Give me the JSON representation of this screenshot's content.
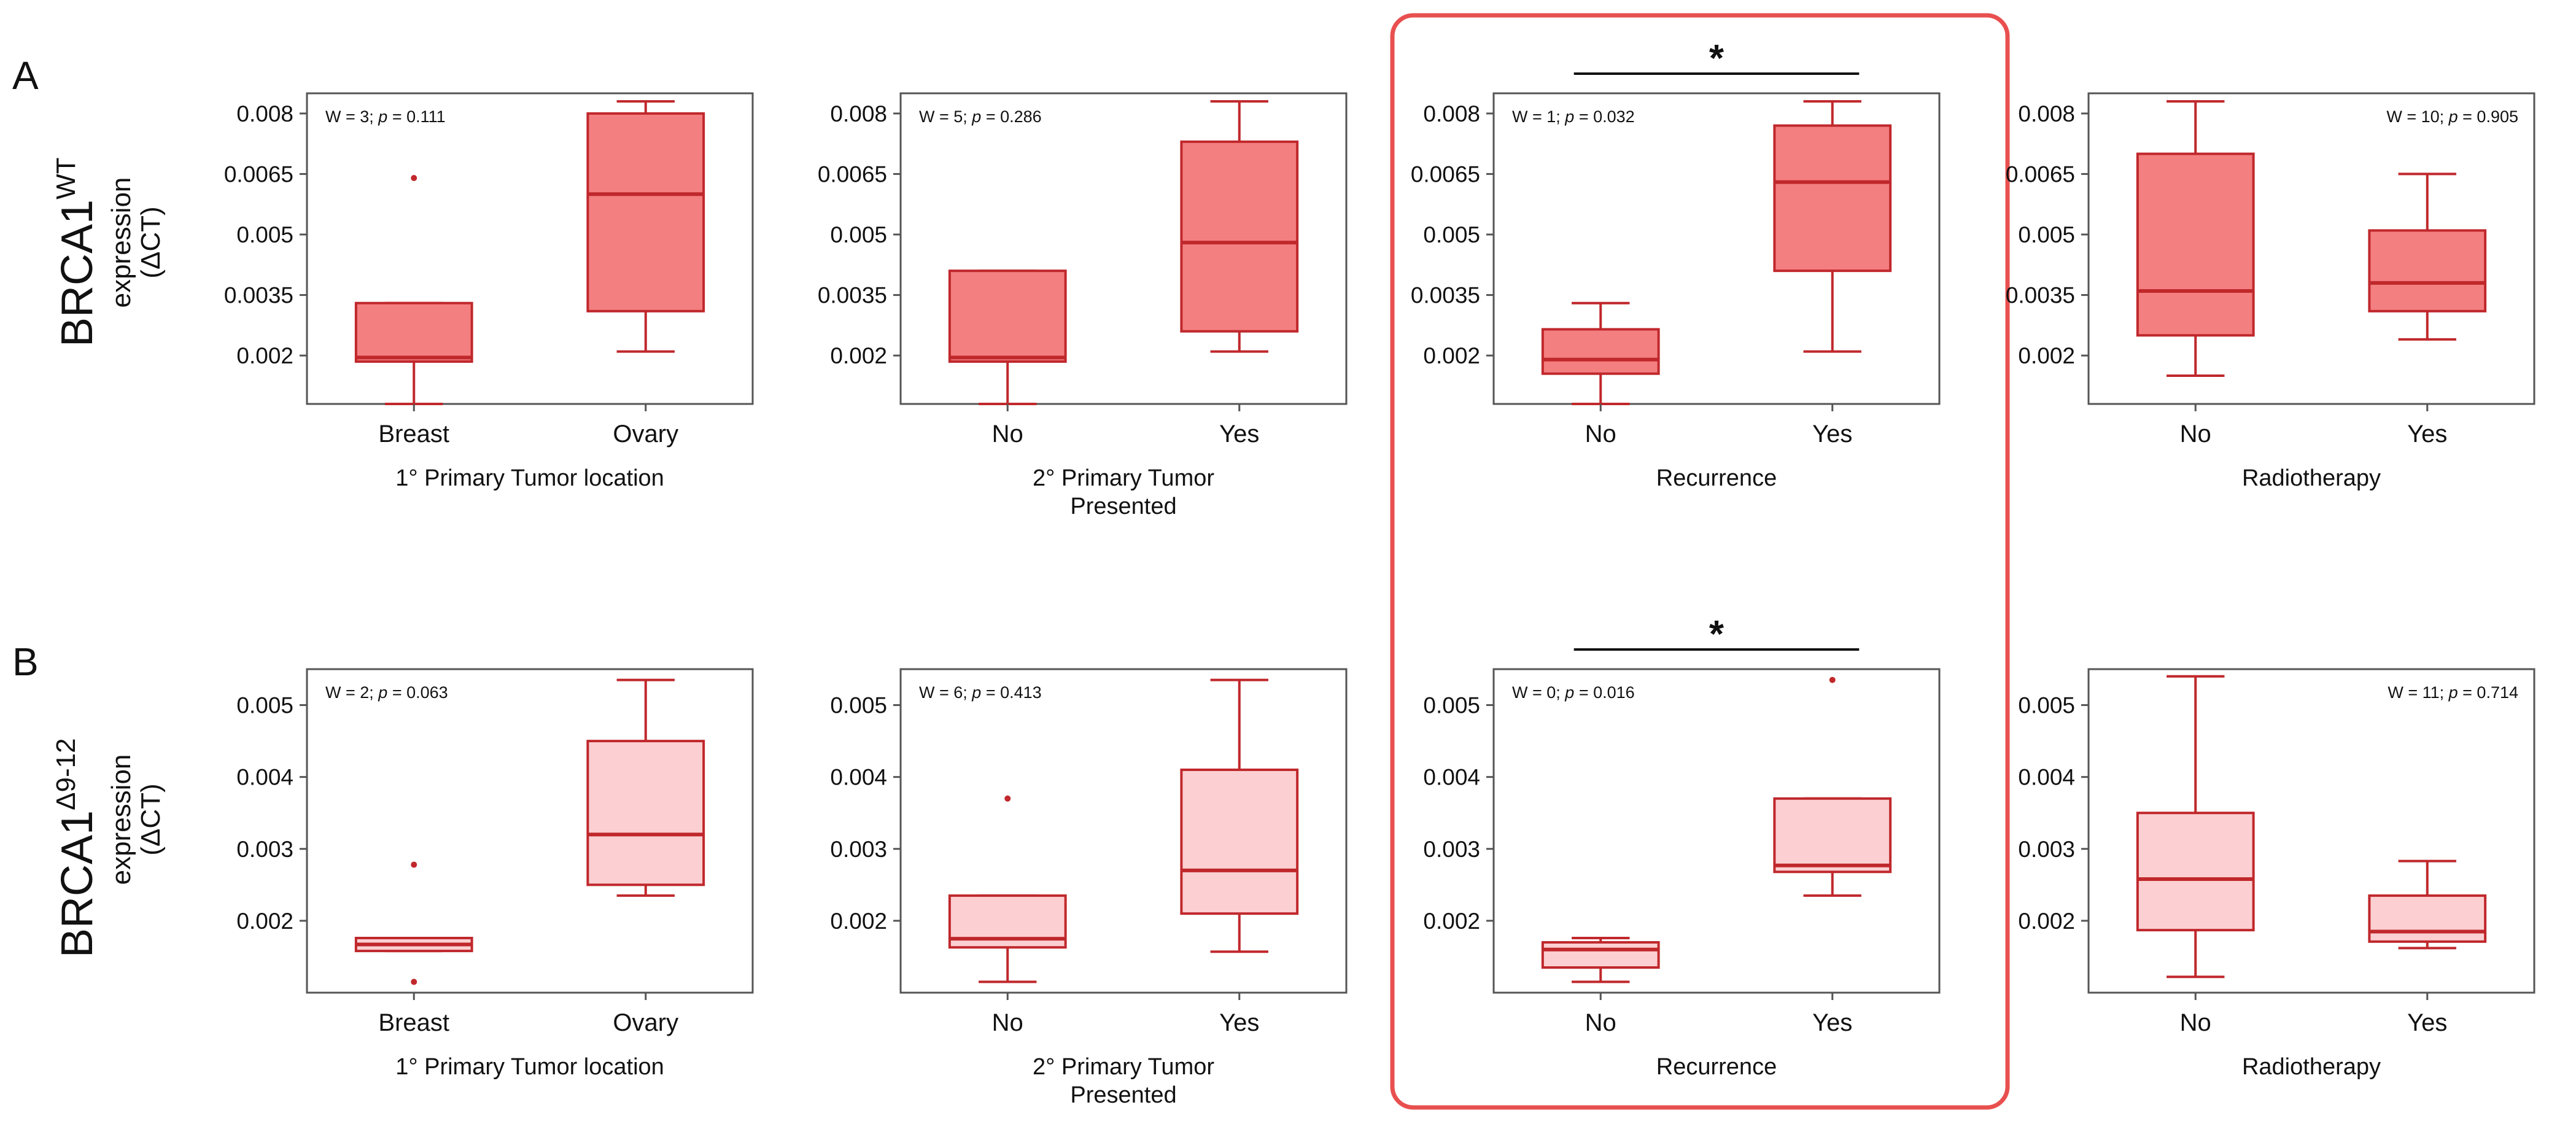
{
  "panels": [
    {
      "label": "A",
      "gene": "BRCA1",
      "superscript": "WT",
      "ylabel_line1": "expression",
      "ylabel_line2": "(ΔCT)"
    },
    {
      "label": "B",
      "gene": "BRCA1",
      "superscript": "Δ9-12",
      "ylabel_line1": "expression",
      "ylabel_line2": "(ΔCT)"
    }
  ],
  "colors": {
    "dark": "#c0282c",
    "fill_A": "#f47f80",
    "fill_B": "#fcd0d2",
    "axis": "#555555",
    "highlight": "#e8504f"
  },
  "highlight_box": {
    "column": 2,
    "label": "Recurrence"
  },
  "chart_data": [
    {
      "type": "box",
      "row": 0,
      "col": 0,
      "xlabel": "1° Primary Tumor location",
      "categories": [
        "Breast",
        "Ovary"
      ],
      "stat_prefix": "W = 3; ",
      "stat_p": "p",
      "stat_suffix": " = 0.111",
      "stat_position": "top-left",
      "ylim": [
        0.0008,
        0.0085
      ],
      "yticks": [
        0.002,
        0.0035,
        0.005,
        0.0065,
        0.008
      ],
      "ytick_labels": [
        "0.002",
        "0.0035",
        "0.005",
        "0.0065",
        "0.008"
      ],
      "boxes": [
        {
          "min": 0.0008,
          "q1": 0.00185,
          "median": 0.00195,
          "q3": 0.0033,
          "max": 0.0033,
          "outliers": [
            0.0064
          ]
        },
        {
          "min": 0.0021,
          "q1": 0.0031,
          "median": 0.006,
          "q3": 0.008,
          "max": 0.0083,
          "outliers": []
        }
      ],
      "significance": ""
    },
    {
      "type": "box",
      "row": 0,
      "col": 1,
      "xlabel": "2° Primary Tumor\nPresented",
      "categories": [
        "No",
        "Yes"
      ],
      "stat_prefix": "W = 5; ",
      "stat_p": "p",
      "stat_suffix": " = 0.286",
      "stat_position": "top-left",
      "ylim": [
        0.0008,
        0.0085
      ],
      "yticks": [
        0.002,
        0.0035,
        0.005,
        0.0065,
        0.008
      ],
      "ytick_labels": [
        "0.002",
        "0.0035",
        "0.005",
        "0.0065",
        "0.008"
      ],
      "boxes": [
        {
          "min": 0.0008,
          "q1": 0.00185,
          "median": 0.00195,
          "q3": 0.0041,
          "max": 0.0041,
          "outliers": []
        },
        {
          "min": 0.0021,
          "q1": 0.0026,
          "median": 0.0048,
          "q3": 0.0073,
          "max": 0.0083,
          "outliers": []
        }
      ],
      "significance": ""
    },
    {
      "type": "box",
      "row": 0,
      "col": 2,
      "xlabel": "Recurrence",
      "categories": [
        "No",
        "Yes"
      ],
      "stat_prefix": "W = 1; ",
      "stat_p": "p",
      "stat_suffix": " = 0.032",
      "stat_position": "top-left",
      "ylim": [
        0.0008,
        0.0085
      ],
      "yticks": [
        0.002,
        0.0035,
        0.005,
        0.0065,
        0.008
      ],
      "ytick_labels": [
        "0.002",
        "0.0035",
        "0.005",
        "0.0065",
        "0.008"
      ],
      "boxes": [
        {
          "min": 0.0008,
          "q1": 0.00155,
          "median": 0.0019,
          "q3": 0.00265,
          "max": 0.0033,
          "outliers": []
        },
        {
          "min": 0.0021,
          "q1": 0.0041,
          "median": 0.0063,
          "q3": 0.0077,
          "max": 0.0083,
          "outliers": []
        }
      ],
      "significance": "*"
    },
    {
      "type": "box",
      "row": 0,
      "col": 3,
      "xlabel": "Radiotherapy",
      "categories": [
        "No",
        "Yes"
      ],
      "stat_prefix": "W = 10; ",
      "stat_p": "p",
      "stat_suffix": " = 0.905",
      "stat_position": "top-right",
      "ylim": [
        0.0008,
        0.0085
      ],
      "yticks": [
        0.002,
        0.0035,
        0.005,
        0.0065,
        0.008
      ],
      "ytick_labels": [
        "0.002",
        "0.0035",
        "0.005",
        "0.0065",
        "0.008"
      ],
      "boxes": [
        {
          "min": 0.0015,
          "q1": 0.0025,
          "median": 0.0036,
          "q3": 0.007,
          "max": 0.0083,
          "outliers": []
        },
        {
          "min": 0.0024,
          "q1": 0.0031,
          "median": 0.0038,
          "q3": 0.0051,
          "max": 0.0065,
          "outliers": []
        }
      ],
      "significance": ""
    },
    {
      "type": "box",
      "row": 1,
      "col": 0,
      "xlabel": "1° Primary Tumor location",
      "categories": [
        "Breast",
        "Ovary"
      ],
      "stat_prefix": "W = 2; ",
      "stat_p": "p",
      "stat_suffix": " = 0.063",
      "stat_position": "top-left",
      "ylim": [
        0.001,
        0.0055
      ],
      "yticks": [
        0.002,
        0.003,
        0.004,
        0.005
      ],
      "ytick_labels": [
        "0.002",
        "0.003",
        "0.004",
        "0.005"
      ],
      "boxes": [
        {
          "min": 0.00158,
          "q1": 0.00158,
          "median": 0.00167,
          "q3": 0.00176,
          "max": 0.00176,
          "outliers": [
            0.00278,
            0.00115
          ]
        },
        {
          "min": 0.00235,
          "q1": 0.0025,
          "median": 0.0032,
          "q3": 0.0045,
          "max": 0.00535,
          "outliers": []
        }
      ],
      "significance": ""
    },
    {
      "type": "box",
      "row": 1,
      "col": 1,
      "xlabel": "2° Primary Tumor\nPresented",
      "categories": [
        "No",
        "Yes"
      ],
      "stat_prefix": "W = 6; ",
      "stat_p": "p",
      "stat_suffix": " = 0.413",
      "stat_position": "top-left",
      "ylim": [
        0.001,
        0.0055
      ],
      "yticks": [
        0.002,
        0.003,
        0.004,
        0.005
      ],
      "ytick_labels": [
        "0.002",
        "0.003",
        "0.004",
        "0.005"
      ],
      "boxes": [
        {
          "min": 0.00115,
          "q1": 0.00163,
          "median": 0.00175,
          "q3": 0.00235,
          "max": 0.00235,
          "outliers": [
            0.0037
          ]
        },
        {
          "min": 0.00157,
          "q1": 0.0021,
          "median": 0.0027,
          "q3": 0.0041,
          "max": 0.00535,
          "outliers": []
        }
      ],
      "significance": ""
    },
    {
      "type": "box",
      "row": 1,
      "col": 2,
      "xlabel": "Recurrence",
      "categories": [
        "No",
        "Yes"
      ],
      "stat_prefix": "W = 0; ",
      "stat_p": "p",
      "stat_suffix": " = 0.016",
      "stat_position": "top-left",
      "ylim": [
        0.001,
        0.0055
      ],
      "yticks": [
        0.002,
        0.003,
        0.004,
        0.005
      ],
      "ytick_labels": [
        "0.002",
        "0.003",
        "0.004",
        "0.005"
      ],
      "boxes": [
        {
          "min": 0.00115,
          "q1": 0.00135,
          "median": 0.0016,
          "q3": 0.0017,
          "max": 0.00176,
          "outliers": []
        },
        {
          "min": 0.00235,
          "q1": 0.00268,
          "median": 0.00277,
          "q3": 0.0037,
          "max": 0.0037,
          "outliers": [
            0.00535
          ]
        }
      ],
      "significance": "*"
    },
    {
      "type": "box",
      "row": 1,
      "col": 3,
      "xlabel": "Radiotherapy",
      "categories": [
        "No",
        "Yes"
      ],
      "stat_prefix": "W = 11; ",
      "stat_p": "p",
      "stat_suffix": " = 0.714",
      "stat_position": "top-right",
      "ylim": [
        0.001,
        0.0055
      ],
      "yticks": [
        0.002,
        0.003,
        0.004,
        0.005
      ],
      "ytick_labels": [
        "0.002",
        "0.003",
        "0.004",
        "0.005"
      ],
      "boxes": [
        {
          "min": 0.00122,
          "q1": 0.00187,
          "median": 0.00258,
          "q3": 0.0035,
          "max": 0.0054,
          "outliers": []
        },
        {
          "min": 0.00162,
          "q1": 0.00171,
          "median": 0.00185,
          "q3": 0.00235,
          "max": 0.00283,
          "outliers": []
        }
      ],
      "significance": ""
    }
  ]
}
